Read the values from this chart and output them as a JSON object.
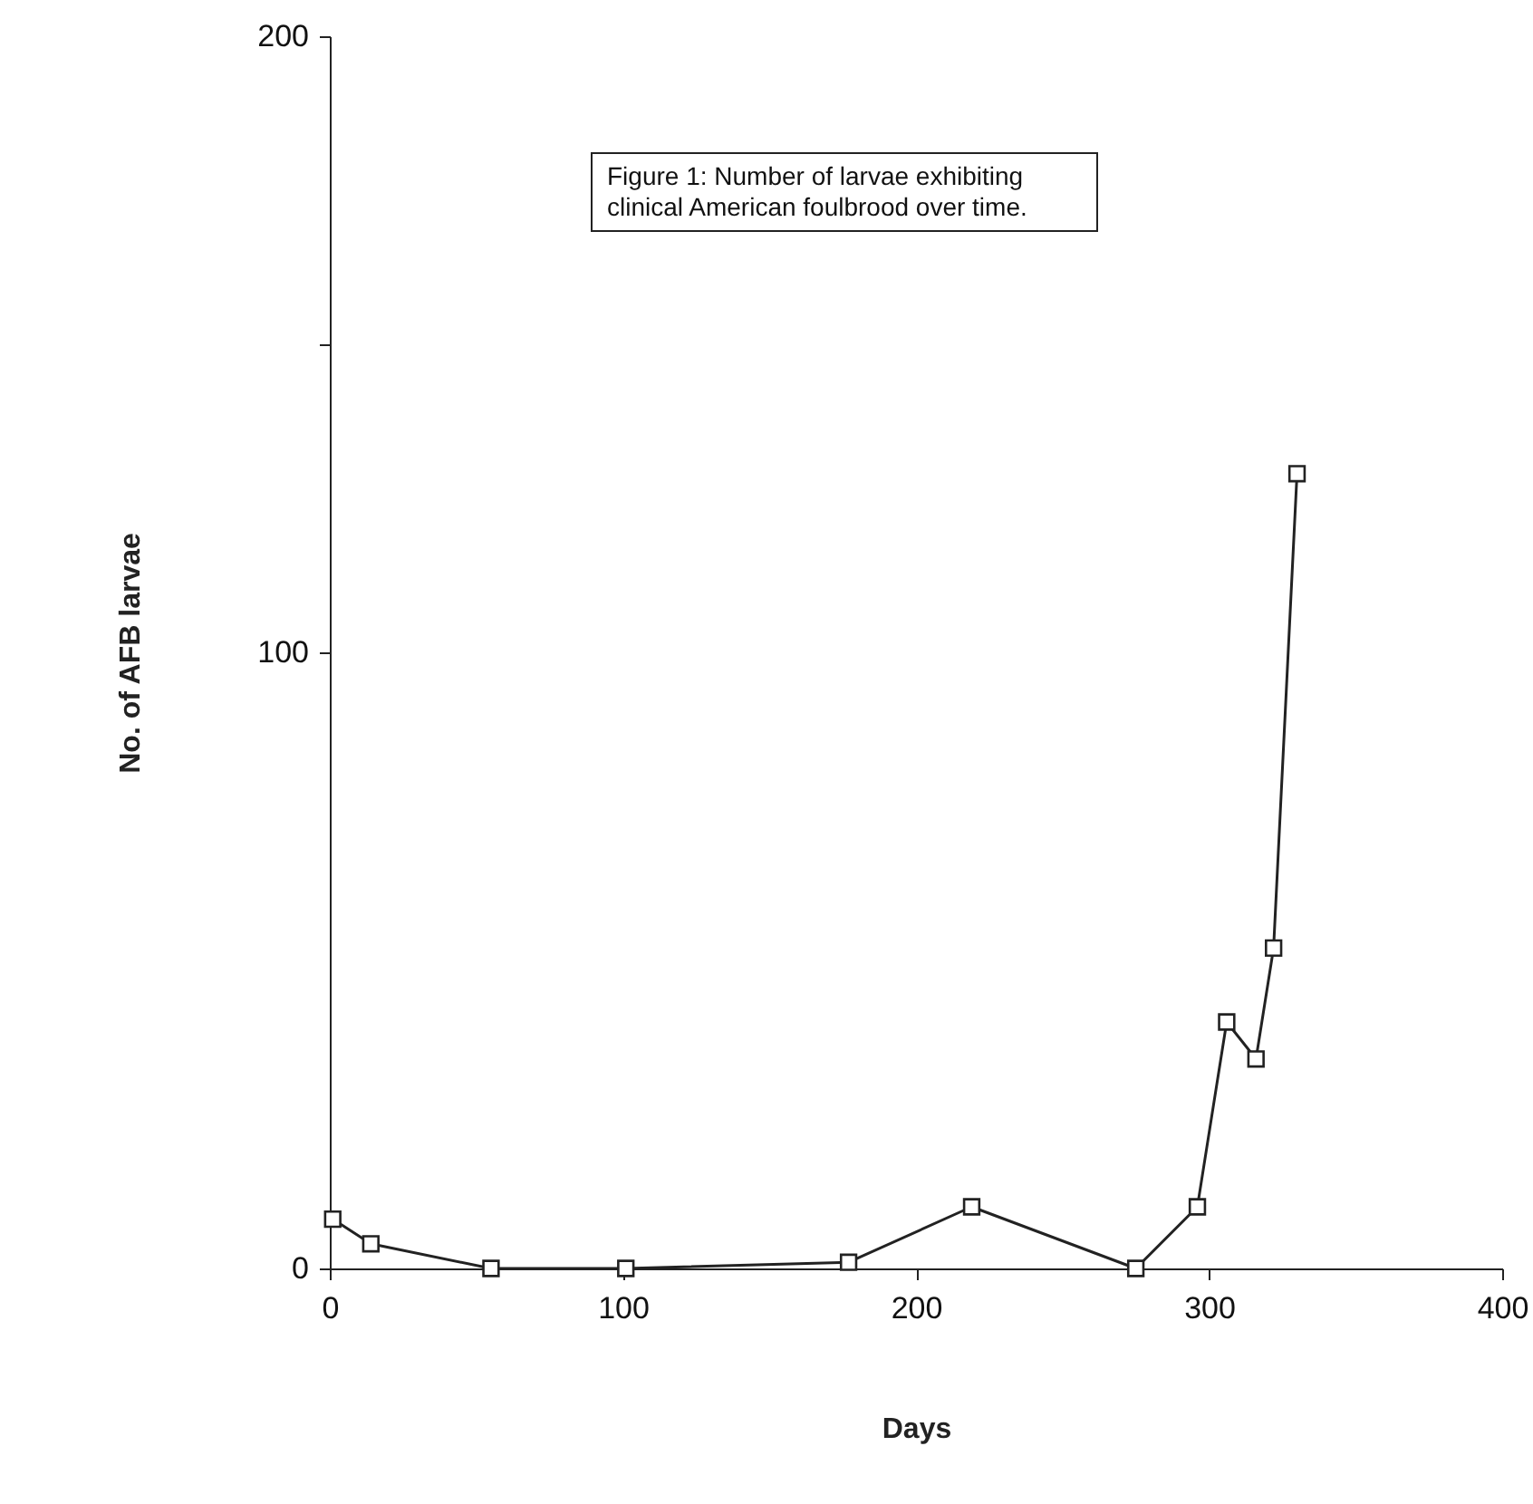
{
  "chart_data": {
    "type": "line",
    "xlabel": "Days",
    "ylabel": "No. of AFB larvae",
    "annotations": [
      "Figure 1: Number of larvae exhibiting clinical American foulbrood over time."
    ],
    "x": [
      1,
      14,
      55,
      101,
      177,
      219,
      275,
      296,
      306,
      316,
      322,
      330
    ],
    "series": [
      {
        "color": "#222222",
        "values": [
          8,
          4,
          0,
          0,
          1,
          10,
          0,
          10,
          40,
          34,
          52,
          129
        ]
      }
    ],
    "xlim": [
      0,
      400
    ],
    "xticks": [
      0,
      100,
      200,
      300,
      400
    ],
    "ylim": [
      0,
      200
    ],
    "yticks": [
      0,
      {
        "value": 150,
        "label": null
      },
      100,
      200
    ],
    "marker": "square",
    "line_style": "solid"
  }
}
